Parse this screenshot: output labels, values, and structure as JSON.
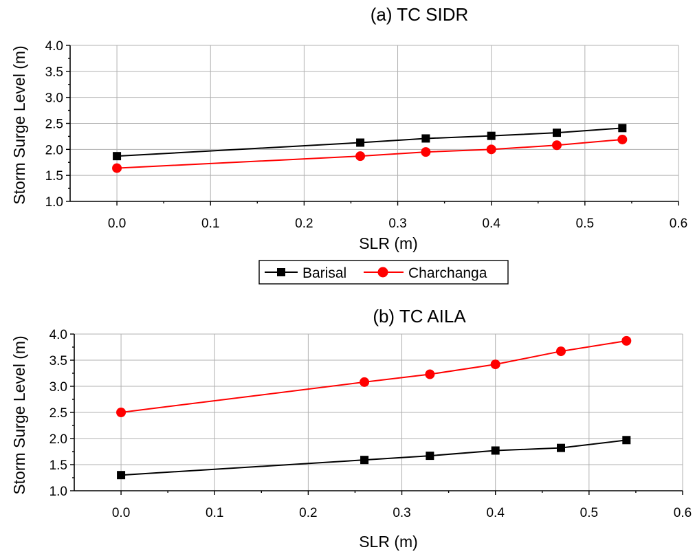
{
  "legend": {
    "entries": [
      {
        "name": "Barisal",
        "color": "#000000",
        "marker": "square"
      },
      {
        "name": "Charchanga",
        "color": "#ff0000",
        "marker": "circle"
      }
    ]
  },
  "chart_data": [
    {
      "type": "line",
      "title": "(a) TC SIDR",
      "xlabel": "SLR (m)",
      "ylabel": "Storm Surge Level (m)",
      "xlim": [
        -0.05,
        0.6
      ],
      "ylim": [
        1.0,
        4.0
      ],
      "xticks": [
        "0.0",
        "0.1",
        "0.2",
        "0.3",
        "0.4",
        "0.5",
        "0.6"
      ],
      "yticks": [
        "1.0",
        "1.5",
        "2.0",
        "2.5",
        "3.0",
        "3.5",
        "4.0"
      ],
      "grid": true,
      "x": [
        0.0,
        0.26,
        0.33,
        0.4,
        0.47,
        0.54
      ],
      "series": [
        {
          "name": "Barisal",
          "color": "#000000",
          "marker": "square",
          "values": [
            1.87,
            2.13,
            2.21,
            2.26,
            2.32,
            2.41
          ]
        },
        {
          "name": "Charchanga",
          "color": "#ff0000",
          "marker": "circle",
          "values": [
            1.64,
            1.87,
            1.95,
            2.0,
            2.08,
            2.19
          ]
        }
      ]
    },
    {
      "type": "line",
      "title": "(b) TC AILA",
      "xlabel": "SLR (m)",
      "ylabel": "Storm Surge Level (m)",
      "xlim": [
        -0.05,
        0.6
      ],
      "ylim": [
        1.0,
        4.0
      ],
      "xticks": [
        "0.0",
        "0.1",
        "0.2",
        "0.3",
        "0.4",
        "0.5",
        "0.6"
      ],
      "yticks": [
        "1.0",
        "1.5",
        "2.0",
        "2.5",
        "3.0",
        "3.5",
        "4.0"
      ],
      "grid": true,
      "x": [
        0.0,
        0.26,
        0.33,
        0.4,
        0.47,
        0.54
      ],
      "series": [
        {
          "name": "Barisal",
          "color": "#000000",
          "marker": "square",
          "values": [
            1.3,
            1.59,
            1.67,
            1.77,
            1.82,
            1.97
          ]
        },
        {
          "name": "Charchanga",
          "color": "#ff0000",
          "marker": "circle",
          "values": [
            2.5,
            3.08,
            3.23,
            3.42,
            3.67,
            3.87
          ]
        }
      ]
    }
  ]
}
